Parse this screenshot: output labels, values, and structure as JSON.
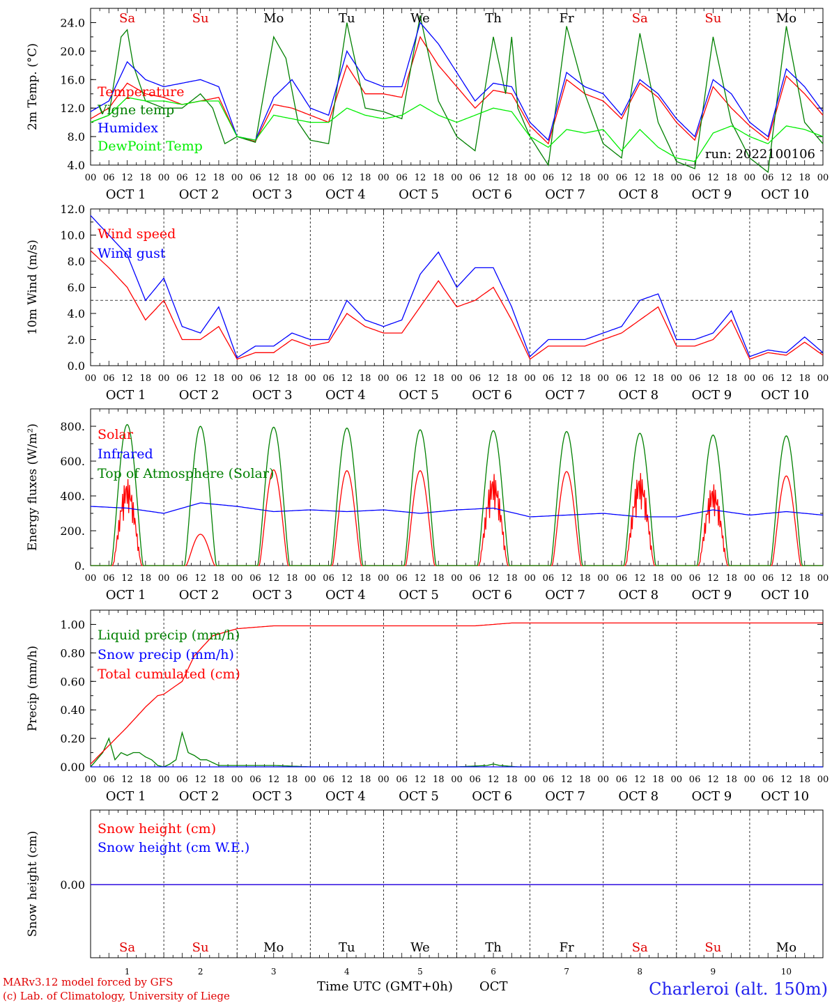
{
  "days": [
    "Sa",
    "Su",
    "Mo",
    "Tu",
    "We",
    "Th",
    "Fr",
    "Sa",
    "Su",
    "Mo"
  ],
  "day_colors": [
    "#e00000",
    "#e00000",
    "#000000",
    "#000000",
    "#000000",
    "#000000",
    "#000000",
    "#e00000",
    "#e00000",
    "#000000"
  ],
  "hour_ticks": [
    "00",
    "06",
    "12",
    "18"
  ],
  "hour_tick_end": "00",
  "date_labels": [
    "OCT  1",
    "OCT  2",
    "OCT  3",
    "OCT  4",
    "OCT  5",
    "OCT  6",
    "OCT  7",
    "OCT  8",
    "OCT  9",
    "OCT 10"
  ],
  "bottom_day_numbers": [
    "1",
    "2",
    "3",
    "4",
    "5",
    "6",
    "7",
    "8",
    "9",
    "10"
  ],
  "run_label": "run: 2022100106",
  "footer": {
    "model": "MARv3.12 model forced by GFS",
    "credit": "(c) Lab. of Climatology, University of Liege",
    "axis_title": "Time UTC (GMT+0h)",
    "month": "OCT",
    "station": "Charleroi (alt. 150m)"
  },
  "chart_data": [
    {
      "type": "line",
      "title": "",
      "ylabel": "2m Temp. (°C)",
      "ylim": [
        4,
        26
      ],
      "yticks": [
        "4.0",
        "8.0",
        "12.0",
        "16.0",
        "20.0",
        "24.0"
      ],
      "x_unit": "hours since Oct 1 00 UTC",
      "series": [
        {
          "name": "Temperature",
          "color": "#ff0000",
          "x": [
            0,
            6,
            12,
            18,
            24,
            30,
            36,
            42,
            48,
            54,
            60,
            66,
            72,
            78,
            84,
            90,
            96,
            102,
            108,
            114,
            120,
            126,
            132,
            138,
            144,
            150,
            156,
            162,
            168,
            174,
            180,
            186,
            192,
            198,
            204,
            210,
            216,
            222,
            228,
            234,
            240
          ],
          "values": [
            10.5,
            12,
            15.5,
            14,
            13.5,
            12.5,
            13,
            13.5,
            8,
            7.3,
            12.5,
            12,
            11,
            10,
            18,
            14,
            14,
            13.5,
            22,
            18,
            15,
            12,
            14.5,
            14,
            9.5,
            7,
            16,
            14,
            13,
            10.5,
            15.5,
            13.5,
            10,
            7.5,
            15,
            12,
            9.5,
            7.5,
            16.5,
            14,
            11
          ]
        },
        {
          "name": "Vigne temp",
          "color": "#008000",
          "x": [
            0,
            6,
            10,
            12,
            14,
            18,
            24,
            30,
            36,
            40,
            44,
            48,
            54,
            60,
            64,
            68,
            72,
            78,
            84,
            90,
            96,
            102,
            108,
            114,
            120,
            126,
            132,
            136,
            138,
            140,
            144,
            150,
            156,
            162,
            168,
            174,
            180,
            186,
            192,
            198,
            204,
            210,
            216,
            222,
            228,
            234,
            240
          ],
          "values": [
            10,
            11,
            22,
            23,
            18,
            13,
            12,
            12,
            14,
            12,
            7,
            8,
            7.2,
            22,
            19,
            10,
            7.5,
            7,
            24,
            12,
            11.5,
            10.5,
            25,
            13,
            8,
            6,
            22,
            14,
            22,
            12,
            8,
            4,
            23.5,
            14,
            7,
            5,
            22.5,
            10,
            4.5,
            3.5,
            22,
            10,
            5,
            3,
            23.5,
            10,
            7
          ]
        },
        {
          "name": "Humidex",
          "color": "#0000ff",
          "x": [
            0,
            6,
            12,
            18,
            24,
            30,
            36,
            42,
            48,
            54,
            60,
            66,
            72,
            78,
            84,
            90,
            96,
            102,
            108,
            114,
            120,
            126,
            132,
            138,
            144,
            150,
            156,
            162,
            168,
            174,
            180,
            186,
            192,
            198,
            204,
            210,
            216,
            222,
            228,
            234,
            240
          ],
          "values": [
            11.5,
            13,
            18.5,
            16,
            15,
            15.5,
            16,
            15,
            8,
            7.5,
            13.5,
            16,
            12,
            11,
            20,
            16,
            15,
            15,
            24,
            21,
            17,
            13,
            15.5,
            15,
            10,
            7.5,
            17,
            15,
            14,
            11,
            16,
            14,
            10.5,
            8,
            16,
            14,
            10,
            8,
            17.5,
            15,
            11.5
          ]
        },
        {
          "name": "DewPoint Temp",
          "color": "#00ee00",
          "x": [
            0,
            6,
            12,
            18,
            24,
            30,
            36,
            42,
            48,
            54,
            60,
            66,
            72,
            78,
            84,
            90,
            96,
            102,
            108,
            114,
            120,
            126,
            132,
            138,
            144,
            150,
            156,
            162,
            168,
            174,
            180,
            186,
            192,
            198,
            204,
            210,
            216,
            222,
            228,
            234,
            240
          ],
          "values": [
            10,
            11,
            13.5,
            13,
            13,
            12.5,
            13,
            13,
            8,
            7.5,
            11,
            10.5,
            10,
            10,
            12,
            11,
            10.5,
            11,
            12.5,
            11,
            10,
            11,
            12,
            11.5,
            8,
            6.5,
            9,
            8.5,
            9,
            6,
            9,
            6.5,
            5,
            4.5,
            8.5,
            9.5,
            8,
            7,
            9.5,
            9,
            8
          ]
        }
      ]
    },
    {
      "type": "line",
      "title": "",
      "ylabel": "10m Wind (m/s)",
      "ylim": [
        0,
        12
      ],
      "yticks": [
        "0.0",
        "2.0",
        "4.0",
        "6.0",
        "8.0",
        "10.0",
        "12.0"
      ],
      "reference_line": 5,
      "x_unit": "hours since Oct 1 00 UTC",
      "series": [
        {
          "name": "Wind speed",
          "color": "#ff0000",
          "x": [
            0,
            6,
            12,
            18,
            24,
            30,
            36,
            42,
            48,
            54,
            60,
            66,
            72,
            78,
            84,
            90,
            96,
            102,
            108,
            114,
            120,
            126,
            132,
            138,
            144,
            150,
            156,
            162,
            168,
            174,
            180,
            186,
            192,
            198,
            204,
            210,
            216,
            222,
            228,
            234,
            240
          ],
          "values": [
            8.8,
            7.5,
            6,
            3.5,
            5,
            2,
            2,
            3,
            0.5,
            1,
            1,
            2,
            1.5,
            1.8,
            4,
            3,
            2.5,
            2.5,
            4.5,
            6.5,
            4.5,
            5,
            6,
            3.5,
            0.5,
            1.5,
            1.5,
            1.5,
            2,
            2.5,
            3.5,
            4.5,
            1.5,
            1.5,
            2,
            3.5,
            0.5,
            1,
            0.8,
            1.8,
            0.8
          ]
        },
        {
          "name": "Wind gust",
          "color": "#0000ff",
          "x": [
            0,
            6,
            12,
            18,
            24,
            30,
            36,
            42,
            48,
            54,
            60,
            66,
            72,
            78,
            84,
            90,
            96,
            102,
            108,
            114,
            120,
            126,
            132,
            138,
            144,
            150,
            156,
            162,
            168,
            174,
            180,
            186,
            192,
            198,
            204,
            210,
            216,
            222,
            228,
            234,
            240
          ],
          "values": [
            11.5,
            10,
            8.5,
            5,
            6.7,
            3,
            2.5,
            4.5,
            0.6,
            1.5,
            1.5,
            2.5,
            2,
            2,
            5,
            3.5,
            3,
            3.5,
            7,
            8.7,
            6,
            7.5,
            7.5,
            4.5,
            0.7,
            2,
            2,
            2,
            2.5,
            3,
            5,
            5.5,
            2,
            2,
            2.5,
            4.2,
            0.7,
            1.2,
            1,
            2.2,
            1
          ]
        }
      ]
    },
    {
      "type": "line",
      "title": "",
      "ylabel": "Energy fluxes (W/m²)",
      "ylim": [
        0,
        900
      ],
      "yticks": [
        "0.",
        "200.",
        "400.",
        "600.",
        "800."
      ],
      "x_unit": "hours since Oct 1 00 UTC",
      "series": [
        {
          "name": "Solar",
          "color": "#ff0000",
          "daily_peak": [
            500,
            180,
            550,
            545,
            545,
            530,
            540,
            535,
            470,
            515
          ]
        },
        {
          "name": "Infrared",
          "color": "#0000ff",
          "x": [
            0,
            12,
            24,
            36,
            48,
            60,
            72,
            84,
            96,
            108,
            120,
            132,
            144,
            156,
            168,
            180,
            192,
            204,
            216,
            228,
            240
          ],
          "values": [
            340,
            330,
            300,
            360,
            340,
            310,
            320,
            310,
            320,
            300,
            320,
            330,
            280,
            290,
            300,
            280,
            280,
            320,
            290,
            310,
            290
          ]
        },
        {
          "name": "Top of Atmosphere (Solar)",
          "color": "#008000",
          "daily_peak": [
            810,
            800,
            795,
            790,
            780,
            775,
            770,
            760,
            750,
            745
          ]
        }
      ]
    },
    {
      "type": "line",
      "title": "",
      "ylabel": "Precip (mm/h)",
      "ylim": [
        0,
        1.1
      ],
      "yticks": [
        "0.00",
        "0.20",
        "0.40",
        "0.60",
        "0.80",
        "1.00"
      ],
      "x_unit": "hours since Oct 1 00 UTC",
      "series": [
        {
          "name": "Liquid precip (mm/h)",
          "color": "#008000",
          "x": [
            0,
            4,
            6,
            8,
            10,
            12,
            14,
            16,
            18,
            20,
            22,
            24,
            26,
            28,
            30,
            32,
            34,
            36,
            38,
            40,
            42,
            44,
            46,
            48,
            60,
            72,
            96,
            120,
            130,
            132,
            134,
            140,
            240
          ],
          "values": [
            0,
            0.1,
            0.2,
            0.05,
            0.1,
            0.08,
            0.1,
            0.1,
            0.07,
            0.05,
            0.01,
            0,
            0.02,
            0.05,
            0.24,
            0.1,
            0.08,
            0.05,
            0.05,
            0.03,
            0.01,
            0.01,
            0.01,
            0.01,
            0.01,
            0,
            0,
            0,
            0.01,
            0.02,
            0.01,
            0,
            0
          ]
        },
        {
          "name": "Snow precip (mm/h)",
          "color": "#0000ff",
          "x": [
            0,
            240
          ],
          "values": [
            0,
            0
          ]
        },
        {
          "name": "Total cumulated (cm)",
          "color": "#ff0000",
          "x": [
            0,
            6,
            12,
            18,
            22,
            24,
            30,
            34,
            40,
            48,
            60,
            96,
            126,
            132,
            138,
            240
          ],
          "values": [
            0.02,
            0.15,
            0.28,
            0.42,
            0.5,
            0.51,
            0.6,
            0.78,
            0.92,
            0.97,
            0.99,
            0.99,
            0.99,
            1.0,
            1.01,
            1.01
          ]
        }
      ]
    },
    {
      "type": "line",
      "title": "",
      "ylabel": "Snow height (cm)",
      "yticks": [
        "0.00"
      ],
      "x_unit": "hours since Oct 1 00 UTC",
      "series": [
        {
          "name": "Snow height (cm)",
          "color": "#ff0000",
          "x": [
            0,
            240
          ],
          "values": [
            0,
            0
          ]
        },
        {
          "name": "Snow height (cm W.E.)",
          "color": "#0000ff",
          "x": [
            0,
            240
          ],
          "values": [
            0,
            0
          ]
        }
      ]
    }
  ]
}
